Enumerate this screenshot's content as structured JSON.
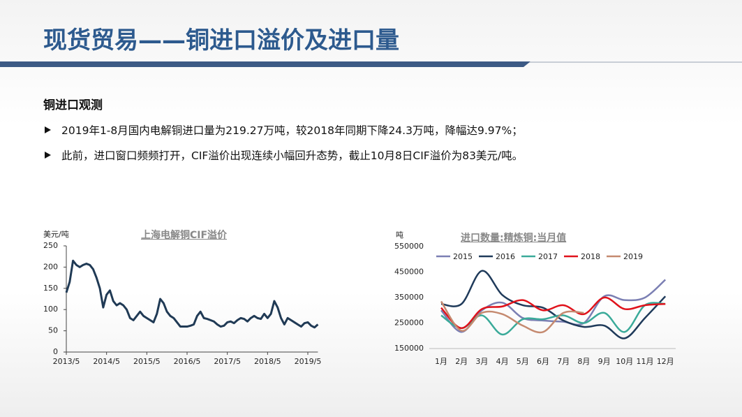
{
  "header": {
    "title": "现货贸易——铜进口溢价及进口量"
  },
  "section": {
    "heading": "铜进口观测",
    "bullets": [
      "2019年1-8月国内电解铜进口量为219.27万吨，较2018年同期下降24.3万吨，降幅达9.97%；",
      "此前，进口窗口频频打开，CIF溢价出现连续小幅回升态势，截止10月8日CIF溢价为83美元/吨。"
    ]
  },
  "chart_data": [
    {
      "type": "line",
      "title": "上海电解铜CIF溢价",
      "y_label": "美元/吨",
      "color": "#203a55",
      "x": [
        "2013/5",
        "2013/6",
        "2013/7",
        "2013/8",
        "2013/9",
        "2013/10",
        "2013/11",
        "2013/12",
        "2014/1",
        "2014/2",
        "2014/3",
        "2014/4",
        "2014/5",
        "2014/6",
        "2014/7",
        "2014/8",
        "2014/9",
        "2014/10",
        "2014/11",
        "2014/12",
        "2015/1",
        "2015/2",
        "2015/3",
        "2015/4",
        "2015/5",
        "2015/6",
        "2015/7",
        "2015/8",
        "2015/9",
        "2015/10",
        "2015/11",
        "2015/12",
        "2016/1",
        "2016/2",
        "2016/3",
        "2016/4",
        "2016/5",
        "2016/6",
        "2016/7",
        "2016/8",
        "2016/9",
        "2016/10",
        "2016/11",
        "2016/12",
        "2017/1",
        "2017/2",
        "2017/3",
        "2017/4",
        "2017/5",
        "2017/6",
        "2017/7",
        "2017/8",
        "2017/9",
        "2017/10",
        "2017/11",
        "2017/12",
        "2018/1",
        "2018/2",
        "2018/3",
        "2018/4",
        "2018/5",
        "2018/6",
        "2018/7",
        "2018/8",
        "2018/9",
        "2018/10",
        "2018/11",
        "2018/12",
        "2019/1",
        "2019/2",
        "2019/3",
        "2019/4",
        "2019/5",
        "2019/6",
        "2019/7",
        "2019/8"
      ],
      "values": [
        140,
        165,
        215,
        205,
        200,
        205,
        208,
        205,
        195,
        175,
        150,
        105,
        135,
        145,
        120,
        110,
        115,
        110,
        100,
        80,
        75,
        85,
        95,
        85,
        80,
        75,
        70,
        90,
        125,
        115,
        95,
        85,
        80,
        70,
        60,
        60,
        60,
        62,
        65,
        85,
        95,
        80,
        78,
        75,
        72,
        65,
        60,
        62,
        70,
        72,
        68,
        75,
        80,
        78,
        72,
        80,
        85,
        80,
        78,
        90,
        80,
        90,
        120,
        105,
        80,
        65,
        80,
        75,
        70,
        65,
        60,
        68,
        70,
        62,
        58,
        65
      ],
      "xticks": [
        "2013/5",
        "2014/5",
        "2015/5",
        "2016/5",
        "2017/5",
        "2018/5",
        "2019/5"
      ],
      "ylim": [
        0,
        250
      ],
      "yticks": [
        0,
        50,
        100,
        150,
        200,
        250
      ]
    },
    {
      "type": "line",
      "title": "进口数量:精炼铜:当月值",
      "y_label": "吨",
      "legend": "top",
      "categories": [
        "1月",
        "2月",
        "3月",
        "4月",
        "5月",
        "6月",
        "7月",
        "8月",
        "9月",
        "10月",
        "11月",
        "12月"
      ],
      "series": [
        {
          "name": "2015",
          "color": "#7b7fb3",
          "values": [
            300000,
            215000,
            300000,
            330000,
            270000,
            260000,
            255000,
            250000,
            355000,
            340000,
            350000,
            420000
          ]
        },
        {
          "name": "2016",
          "color": "#1f3a5a",
          "values": [
            325000,
            325000,
            455000,
            360000,
            320000,
            310000,
            260000,
            235000,
            240000,
            190000,
            270000,
            355000
          ]
        },
        {
          "name": "2017",
          "color": "#3aaa99",
          "values": [
            280000,
            230000,
            280000,
            205000,
            265000,
            265000,
            280000,
            250000,
            290000,
            215000,
            320000,
            325000
          ]
        },
        {
          "name": "2018",
          "color": "#e0121b",
          "values": [
            310000,
            230000,
            305000,
            315000,
            340000,
            300000,
            320000,
            285000,
            350000,
            305000,
            320000,
            325000
          ]
        },
        {
          "name": "2019",
          "color": "#c58a70",
          "values": [
            335000,
            220000,
            290000,
            285000,
            240000,
            215000,
            290000,
            290000,
            null,
            null,
            null,
            null
          ]
        }
      ],
      "ylim": [
        150000,
        550000
      ],
      "yticks": [
        150000,
        250000,
        350000,
        450000,
        550000
      ]
    }
  ]
}
